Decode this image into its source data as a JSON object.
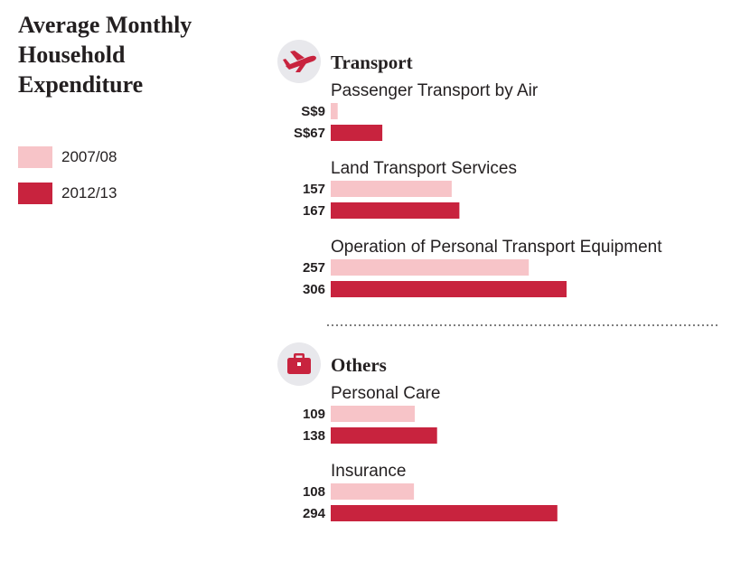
{
  "title": "Average Monthly Household Expenditure",
  "legend": [
    {
      "label": "2007/08",
      "color": "#f7c4c8"
    },
    {
      "label": "2012/13",
      "color": "#c8233e"
    }
  ],
  "chart_data": {
    "type": "bar",
    "orientation": "horizontal",
    "title": "Average Monthly Household Expenditure",
    "series": [
      {
        "name": "2007/08",
        "color": "#f7c4c8"
      },
      {
        "name": "2012/13",
        "color": "#c8233e"
      }
    ],
    "sections": [
      {
        "title": "Transport",
        "icon": "airplane-icon",
        "categories": [
          {
            "name": "Passenger Transport by Air",
            "values": [
              9,
              67
            ],
            "value_labels": [
              "S$9",
              "S$67"
            ]
          },
          {
            "name": "Land Transport Services",
            "values": [
              157,
              167
            ],
            "value_labels": [
              "157",
              "167"
            ]
          },
          {
            "name": "Operation of Personal Transport Equipment",
            "values": [
              257,
              306
            ],
            "value_labels": [
              "257",
              "306"
            ]
          }
        ]
      },
      {
        "title": "Others",
        "icon": "briefcase-icon",
        "categories": [
          {
            "name": "Personal Care",
            "values": [
              109,
              138
            ],
            "value_labels": [
              "109",
              "138"
            ]
          },
          {
            "name": "Insurance",
            "values": [
              108,
              294
            ],
            "value_labels": [
              "108",
              "294"
            ]
          }
        ]
      }
    ],
    "xlim": [
      0,
      306
    ],
    "grid": false,
    "legend_position": "left"
  }
}
